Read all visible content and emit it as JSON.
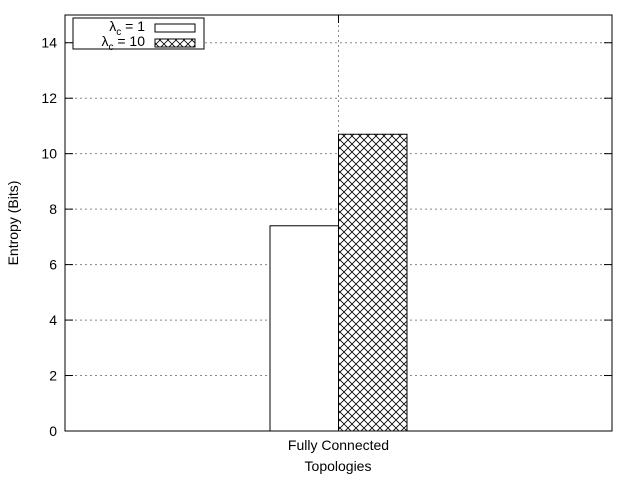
{
  "chart_data": {
    "type": "bar",
    "categories": [
      "Fully Connected"
    ],
    "series": [
      {
        "name": "λc = 1",
        "name_main": "λ",
        "name_sub": "c",
        "name_rest": " = 1",
        "values": [
          7.4
        ],
        "pattern": "solid",
        "fill": "#ffffff"
      },
      {
        "name": "λc = 10",
        "name_main": "λ",
        "name_sub": "c",
        "name_rest": " = 10",
        "values": [
          10.7
        ],
        "pattern": "crosshatch",
        "fill": "#ffffff"
      }
    ],
    "xlabel": "Topologies",
    "ylabel": "Entropy (Bits)",
    "ylim": [
      0,
      15
    ],
    "yticks": [
      0,
      2,
      4,
      6,
      8,
      10,
      12,
      14
    ],
    "grid": true,
    "grid_style": "dotted",
    "legend_position": "top-left"
  }
}
